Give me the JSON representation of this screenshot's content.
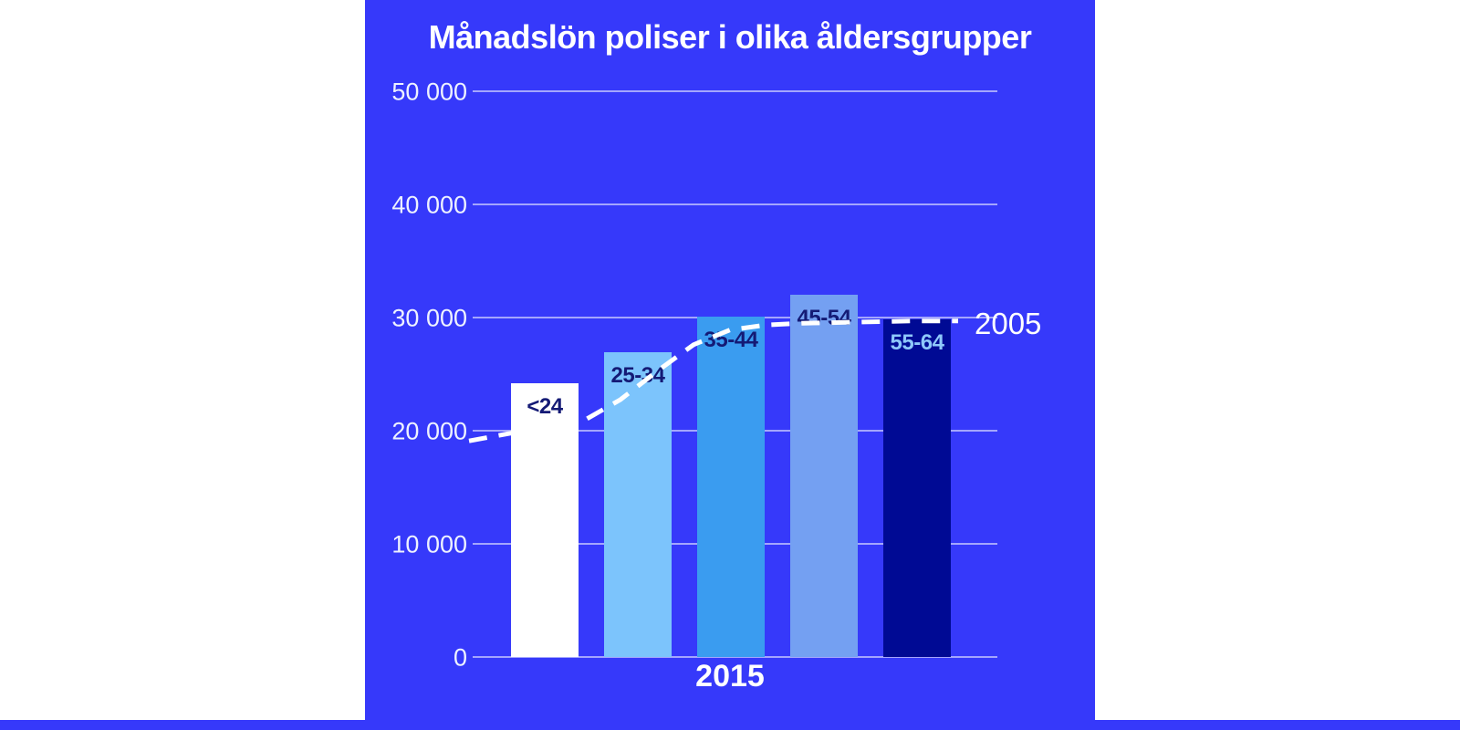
{
  "colors": {
    "background": "#3639fa",
    "grid": "rgba(238,240,255,0.6)",
    "title_text": "#ffffff",
    "axis_text": "#eef2ff",
    "line": "#ffffff",
    "label_dark": "#141a75",
    "label_light": "#8ec8fa"
  },
  "chart_data": {
    "type": "bar",
    "title": "Månadslön poliser i olika åldersgrupper",
    "x_group_label": "2015",
    "line_label": "2005",
    "categories": [
      "<24",
      "25-34",
      "35-44",
      "45-54",
      "55-64"
    ],
    "series": [
      {
        "name": "2015",
        "type": "bar",
        "values": [
          24200,
          26900,
          30100,
          32000,
          29800
        ]
      },
      {
        "name": "2005",
        "type": "line",
        "values": [
          20000,
          24100,
          28900,
          29600,
          29700
        ]
      }
    ],
    "ylim": [
      0,
      50000
    ],
    "grid": "on",
    "legend_position": "line label at right end of dashed line",
    "yticks": [
      {
        "label": "0",
        "value": 0
      },
      {
        "label": "10 000",
        "value": 10000
      },
      {
        "label": "20 000",
        "value": 20000
      },
      {
        "label": "30 000",
        "value": 30000
      },
      {
        "label": "40 000",
        "value": 40000
      },
      {
        "label": "50 000",
        "value": 50000
      }
    ],
    "bars": [
      {
        "label": "<24",
        "value": 24200,
        "color": "#ffffff",
        "label_color": "#141a75",
        "front": true
      },
      {
        "label": "25-34",
        "value": 26900,
        "color": "#7cc4fc",
        "label_color": "#141a75",
        "front": false
      },
      {
        "label": "35-44",
        "value": 30100,
        "color": "#3a9cf0",
        "label_color": "#141a75",
        "front": false
      },
      {
        "label": "45-54",
        "value": 32000,
        "color": "#74a0f2",
        "label_color": "#141a75",
        "front": false
      },
      {
        "label": "55-64",
        "value": 29800,
        "color": "#000a94",
        "label_color": "#8ec8fa",
        "front": false
      }
    ],
    "line_path_samples": [
      {
        "x": 114,
        "v": 19100
      },
      {
        "x": 158,
        "v": 19750
      },
      {
        "x": 240,
        "v": 20900
      },
      {
        "x": 280,
        "v": 22750
      },
      {
        "x": 320,
        "v": 25250
      },
      {
        "x": 360,
        "v": 27600
      },
      {
        "x": 400,
        "v": 28900
      },
      {
        "x": 440,
        "v": 29350
      },
      {
        "x": 480,
        "v": 29500
      },
      {
        "x": 540,
        "v": 29600
      },
      {
        "x": 600,
        "v": 29700
      },
      {
        "x": 650,
        "v": 29700
      }
    ]
  }
}
